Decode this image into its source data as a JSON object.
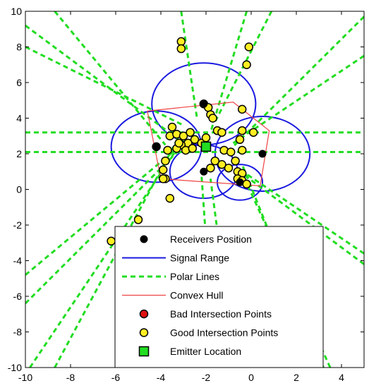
{
  "chart_data": {
    "type": "scatter",
    "xlim": [
      -10,
      5
    ],
    "ylim": [
      -10,
      10
    ],
    "x_ticks": [
      -10,
      -8,
      -6,
      -4,
      -2,
      0,
      2,
      4
    ],
    "y_ticks": [
      -10,
      -8,
      -6,
      -4,
      -2,
      0,
      2,
      4,
      6,
      8,
      10
    ],
    "x_tick_labels": [
      "-10",
      "-8",
      "-6",
      "-4",
      "-2",
      "0",
      "2",
      "4"
    ],
    "y_tick_labels": [
      "-10",
      "-8",
      "-6",
      "-4",
      "-2",
      "0",
      "2",
      "4",
      "6",
      "8",
      "10"
    ],
    "grid": false,
    "legend_placement": "bottom",
    "legend": [
      {
        "label": "Receivers Position",
        "kind": "dot",
        "color": "#000000"
      },
      {
        "label": "Signal Range",
        "kind": "line",
        "color": "#1a1adf"
      },
      {
        "label": "Polar Lines",
        "kind": "dash",
        "color": "#22dd22"
      },
      {
        "label": "Convex Hull",
        "kind": "line-thin",
        "color": "#ee4444"
      },
      {
        "label": "Bad Intersection Points",
        "kind": "circle",
        "color": "#dd1111"
      },
      {
        "label": "Good Intersection Points",
        "kind": "circle",
        "color": "#ffee22"
      },
      {
        "label": "Emitter Location",
        "kind": "square",
        "color": "#22dd22"
      }
    ],
    "receivers": [
      [
        -2.1,
        4.8
      ],
      [
        -4.2,
        2.4
      ],
      [
        0.5,
        2.0
      ],
      [
        -2.1,
        1.0
      ],
      [
        -0.5,
        0.4
      ]
    ],
    "signal_circles": [
      {
        "center": [
          -2.1,
          4.8
        ],
        "radius": 2.3
      },
      {
        "center": [
          -4.2,
          2.4
        ],
        "radius": 2.0
      },
      {
        "center": [
          0.5,
          2.0
        ],
        "radius": 2.1
      },
      {
        "center": [
          -2.1,
          1.0
        ],
        "radius": 1.5
      },
      {
        "center": [
          -0.5,
          0.4
        ],
        "radius": 1.0
      }
    ],
    "polar_lines": [
      [
        [
          -10,
          9.2
        ],
        [
          -3.0,
          2.6
        ]
      ],
      [
        [
          -10,
          8.0
        ],
        [
          -3.0,
          3.6
        ]
      ],
      [
        [
          -10,
          3.2
        ],
        [
          5,
          3.2
        ]
      ],
      [
        [
          -10,
          2.1
        ],
        [
          5,
          2.1
        ]
      ],
      [
        [
          -8.7,
          10
        ],
        [
          -3.8,
          2.5
        ]
      ],
      [
        [
          -3.1,
          10
        ],
        [
          -2.4,
          4.0
        ]
      ],
      [
        [
          -0.2,
          10
        ],
        [
          -1.8,
          3.2
        ]
      ],
      [
        [
          0.9,
          10
        ],
        [
          -1.6,
          3.8
        ]
      ],
      [
        [
          5,
          9.7
        ],
        [
          -0.8,
          2.4
        ]
      ],
      [
        [
          5,
          7.5
        ],
        [
          -0.8,
          2.6
        ]
      ],
      [
        [
          -10,
          -4.8
        ],
        [
          -3.0,
          2.6
        ]
      ],
      [
        [
          -10,
          -6.4
        ],
        [
          -3.2,
          2.2
        ]
      ],
      [
        [
          -9.8,
          -10
        ],
        [
          -2.9,
          3.0
        ]
      ],
      [
        [
          -8.7,
          -10
        ],
        [
          -3.1,
          3.2
        ]
      ],
      [
        [
          -1.6,
          -10
        ],
        [
          -2.2,
          0.8
        ]
      ],
      [
        [
          -0.7,
          -10
        ],
        [
          -1.8,
          0.6
        ]
      ],
      [
        [
          3.2,
          -10
        ],
        [
          -0.4,
          1.4
        ]
      ],
      [
        [
          3.5,
          -10
        ],
        [
          -0.5,
          1.2
        ]
      ],
      [
        [
          5,
          -3.6
        ],
        [
          -0.6,
          1.2
        ]
      ],
      [
        [
          5,
          -4.2
        ],
        [
          -0.3,
          0.8
        ]
      ]
    ],
    "convex_hull": [
      [
        -4.6,
        4.4
      ],
      [
        -0.8,
        4.9
      ],
      [
        0.8,
        3.3
      ],
      [
        0.4,
        0.2
      ],
      [
        -4.0,
        0.6
      ],
      [
        -4.6,
        4.4
      ]
    ],
    "bad_points": [
      [
        -3.1,
        8.3
      ],
      [
        -3.1,
        7.9
      ],
      [
        -0.1,
        8.0
      ],
      [
        -0.2,
        7.0
      ],
      [
        -4.2,
        2.4
      ],
      [
        -3.6,
        -0.5
      ],
      [
        -5.0,
        -1.7
      ],
      [
        -6.2,
        -2.9
      ],
      [
        -3.9,
        0.6
      ],
      [
        -0.2,
        0.3
      ]
    ],
    "good_points": [
      [
        -2.1,
        4.8
      ],
      [
        -1.9,
        4.6
      ],
      [
        -1.8,
        4.2
      ],
      [
        -1.7,
        4.0
      ],
      [
        -0.4,
        4.5
      ],
      [
        -3.5,
        3.5
      ],
      [
        -3.6,
        3.0
      ],
      [
        -3.3,
        3.1
      ],
      [
        -3.0,
        3.0
      ],
      [
        -2.7,
        3.2
      ],
      [
        -2.5,
        2.8
      ],
      [
        -2.8,
        2.6
      ],
      [
        -3.1,
        2.5
      ],
      [
        -3.3,
        2.3
      ],
      [
        -2.9,
        2.2
      ],
      [
        -2.6,
        2.3
      ],
      [
        -2.2,
        2.6
      ],
      [
        -1.5,
        3.3
      ],
      [
        -1.3,
        3.2
      ],
      [
        -1.2,
        2.2
      ],
      [
        -0.9,
        2.1
      ],
      [
        -0.5,
        2.8
      ],
      [
        -0.4,
        3.3
      ],
      [
        0.1,
        3.2
      ],
      [
        -0.4,
        2.2
      ],
      [
        -0.7,
        1.6
      ],
      [
        -1.0,
        1.2
      ],
      [
        -1.3,
        1.4
      ],
      [
        -1.6,
        1.6
      ],
      [
        -1.8,
        1.2
      ],
      [
        -0.6,
        1.0
      ],
      [
        -0.4,
        0.9
      ],
      [
        -0.6,
        0.6
      ],
      [
        -0.4,
        0.5
      ],
      [
        -3.7,
        2.2
      ],
      [
        -3.8,
        1.6
      ],
      [
        -3.9,
        1.1
      ],
      [
        -3.8,
        0.6
      ],
      [
        -3.2,
        2.6
      ],
      [
        -2.0,
        2.9
      ]
    ],
    "emitter": [
      -2.0,
      2.4
    ]
  }
}
